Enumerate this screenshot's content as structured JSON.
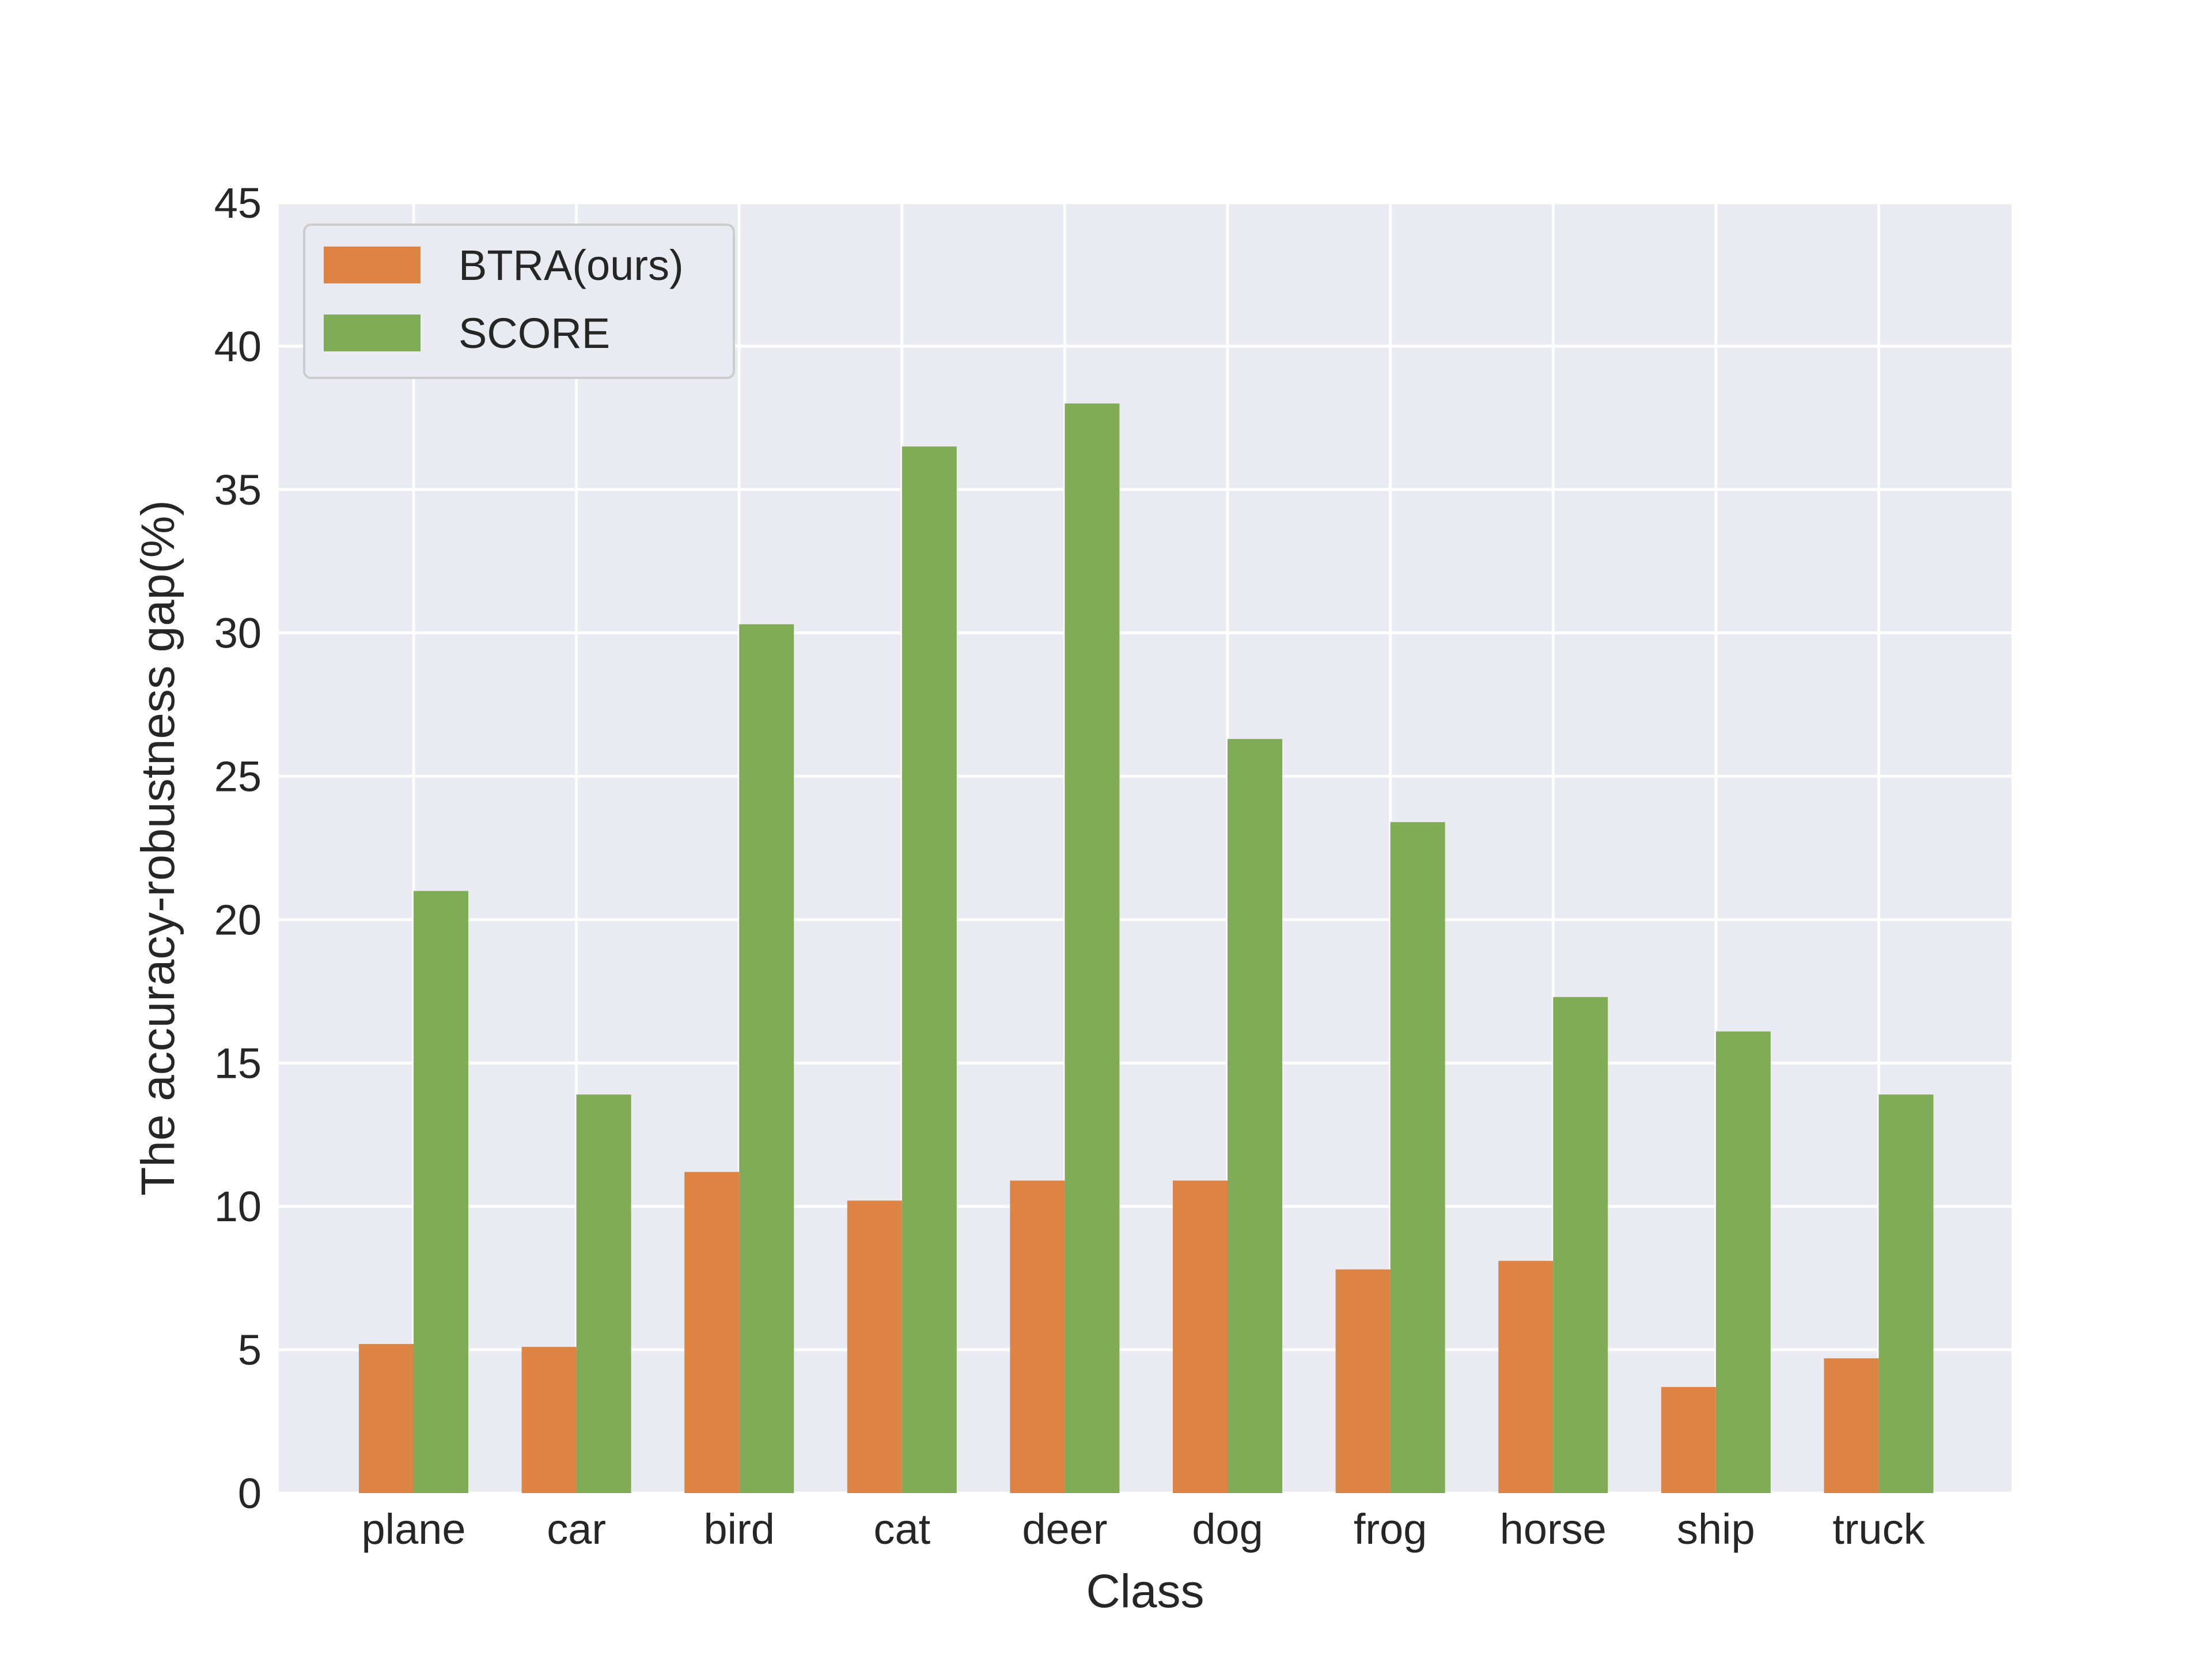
{
  "chart_data": {
    "type": "bar",
    "title": "",
    "xlabel": "Class",
    "ylabel": "The accuracy-robustness gap(%)",
    "categories": [
      "plane",
      "car",
      "bird",
      "cat",
      "deer",
      "dog",
      "frog",
      "horse",
      "ship",
      "truck"
    ],
    "series": [
      {
        "name": "BTRA(ours)",
        "color": "#dd8344",
        "values": [
          5.2,
          5.1,
          11.2,
          10.2,
          10.9,
          10.9,
          7.8,
          8.1,
          3.7,
          4.7
        ]
      },
      {
        "name": "SCORE",
        "color": "#80ab57",
        "values": [
          21.0,
          13.9,
          30.3,
          36.5,
          38.0,
          26.3,
          23.4,
          17.3,
          16.1,
          13.9
        ]
      }
    ],
    "ylim": [
      0,
      45
    ],
    "yticks": [
      0,
      5,
      10,
      15,
      20,
      25,
      30,
      35,
      40,
      45
    ],
    "grid": true,
    "legend_position": "top-left",
    "background_color": "#eaeaf2",
    "grid_color": "#ffffff"
  }
}
